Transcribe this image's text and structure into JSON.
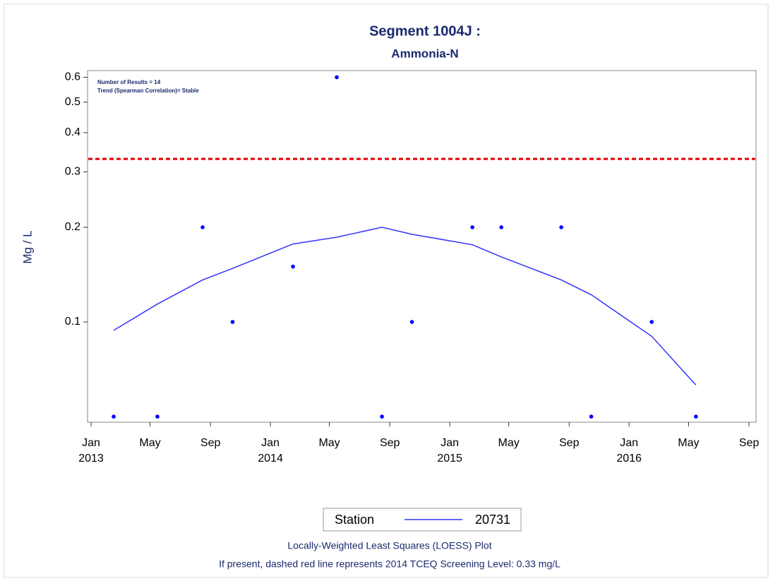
{
  "chart_data": {
    "type": "scatter",
    "title": "Segment 1004J :",
    "subtitle": "Ammonia-N",
    "y_label": "Mg / L",
    "annotations": [
      "Number of Results = 14",
      "Trend (Spearman Correlation)= Stable"
    ],
    "footer": [
      "Locally-Weighted Least Squares (LOESS) Plot",
      "If present, dashed red line represents 2014 TCEQ Screening Level: 0.33 mg/L"
    ],
    "legend_title": "Station",
    "x": [
      "2013-02",
      "2013-05",
      "2013-08",
      "2013-10",
      "2014-02",
      "2014-05",
      "2014-08",
      "2014-10",
      "2015-02",
      "2015-04",
      "2015-08",
      "2015-10",
      "2016-02",
      "2016-05"
    ],
    "points": {
      "color": "#0000ff",
      "values": [
        0.05,
        0.05,
        0.2,
        0.1,
        0.15,
        0.6,
        0.05,
        0.1,
        0.2,
        0.2,
        0.2,
        0.05,
        0.1,
        0.05
      ]
    },
    "series": [
      {
        "name": "20731",
        "color": "#3333ff",
        "type": "line",
        "values": [
          0.094,
          0.114,
          0.136,
          0.148,
          0.177,
          0.186,
          0.2,
          0.19,
          0.176,
          0.161,
          0.136,
          0.122,
          0.09,
          0.063
        ]
      }
    ],
    "reference_line": {
      "value": 0.33,
      "color": "#e00000",
      "dashed": true
    },
    "xlim": [
      "2013-01",
      "2016-09"
    ],
    "xticks": [
      {
        "value": "2013-01",
        "label": "Jan 2013"
      },
      {
        "value": "2013-05",
        "label": "May"
      },
      {
        "value": "2013-09",
        "label": "Sep"
      },
      {
        "value": "2014-01",
        "label": "Jan 2014"
      },
      {
        "value": "2014-05",
        "label": "May"
      },
      {
        "value": "2014-09",
        "label": "Sep"
      },
      {
        "value": "2015-01",
        "label": "Jan 2015"
      },
      {
        "value": "2015-05",
        "label": "May"
      },
      {
        "value": "2015-09",
        "label": "Sep"
      },
      {
        "value": "2016-01",
        "label": "Jan 2016"
      },
      {
        "value": "2016-05",
        "label": "May"
      },
      {
        "value": "2016-09",
        "label": "Sep"
      }
    ],
    "ylim": [
      0.048,
      0.63
    ],
    "yticks": [
      0.1,
      0.2,
      0.3,
      0.4,
      0.5,
      0.6
    ],
    "log_y": true,
    "grid": false,
    "legend_position": "bottom"
  }
}
